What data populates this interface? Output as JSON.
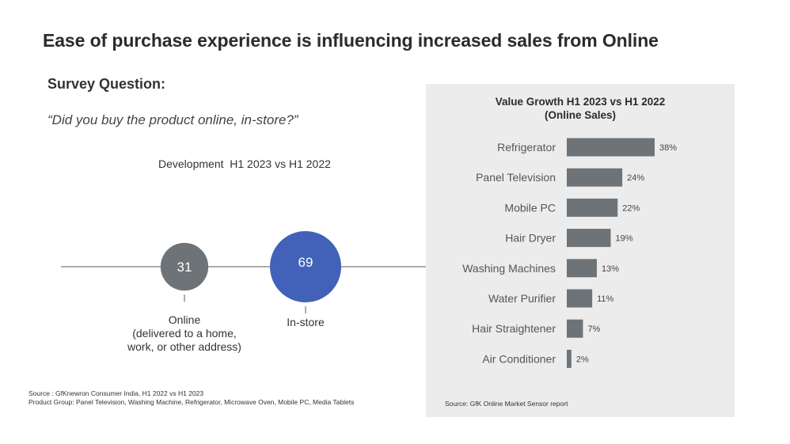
{
  "header": {
    "title": "Ease of purchase experience is influencing increased sales from Online"
  },
  "survey": {
    "heading": "Survey Question:",
    "question": "“Did you buy the product online, in-store?”"
  },
  "development": {
    "caption": "Development  H1 2023 vs H1 2022"
  },
  "source_left": {
    "line1": "Source : GfKnewron Consumer India, H1 2022 vs H1 2023",
    "line2": "Product Group: Panel Television, Washing Machine, Refrigerator,  Microwave Oven, Mobile PC, Media Tablets"
  },
  "chart_data": [
    {
      "type": "scatter",
      "subtype": "bubble",
      "title": "Development  H1 2023 vs H1 2022",
      "points": [
        {
          "label": "Online",
          "sublabel_line1": "(delivered to a home,",
          "sublabel_line2": "work, or other address)",
          "value": 31,
          "color": "#6e7378"
        },
        {
          "label": "In-store",
          "value": 69,
          "color": "#4162b8"
        }
      ],
      "colors": {
        "axis_line": "#595959"
      }
    },
    {
      "type": "bar",
      "orientation": "horizontal",
      "title_line1": "Value Growth H1 2023 vs H1 2022",
      "title_line2": "(Online Sales)",
      "categories": [
        "Refrigerator",
        "Panel Television",
        "Mobile PC",
        "Hair Dryer",
        "Washing Machines",
        "Water Purifier",
        "Hair Straightener",
        "Air Conditioner"
      ],
      "values": [
        38,
        24,
        22,
        19,
        13,
        11,
        7,
        2
      ],
      "value_labels": [
        "38%",
        "24%",
        "22%",
        "19%",
        "13%",
        "11%",
        "7%",
        "2%"
      ],
      "unit": "%",
      "xlim": [
        0,
        38
      ],
      "colors": {
        "bar": "#6e7378",
        "panel": "#ececec"
      },
      "source": "Source: GfK Online Market Sensor report"
    }
  ]
}
